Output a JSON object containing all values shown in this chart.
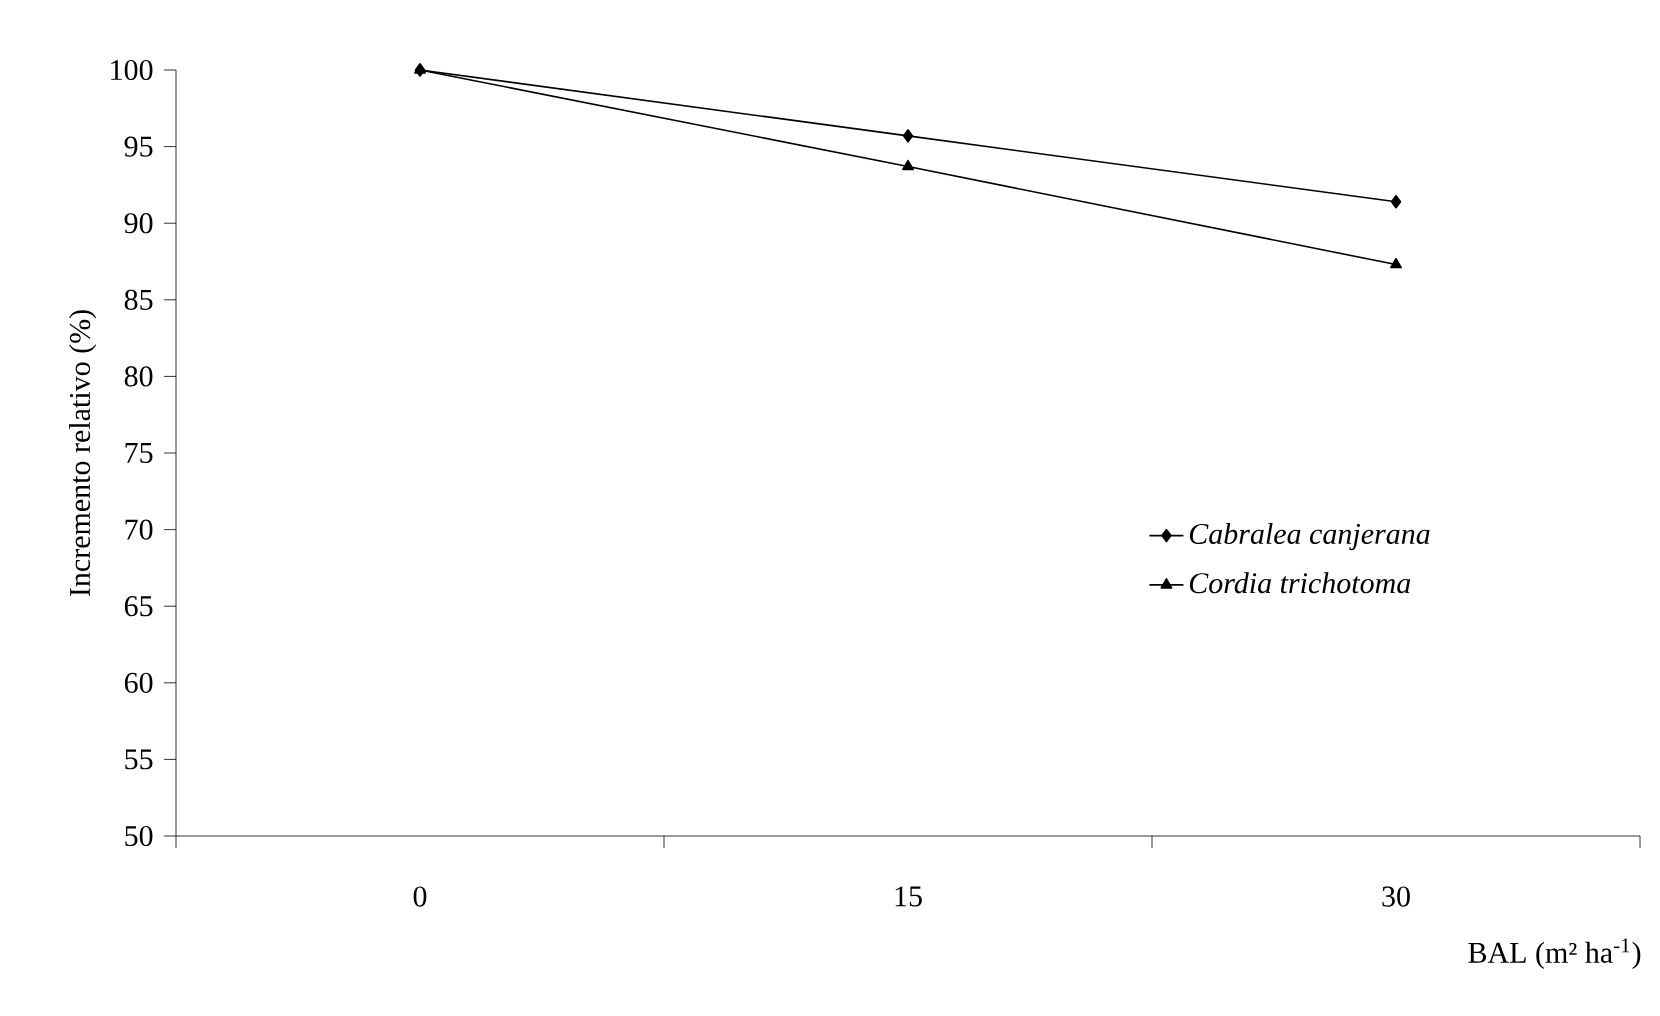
{
  "chart_data": {
    "type": "line",
    "xlabel": "BAL (m² ha$^{-1}$)",
    "ylabel": "Incremento relativo (%)",
    "categories": [
      "0",
      "15",
      "30"
    ],
    "series": [
      {
        "name": "Cabralea canjerana",
        "color": "#000000",
        "marker": "diamond",
        "values": [
          100,
          95.7,
          91.4
        ]
      },
      {
        "name": "Cordia trichotoma",
        "color": "#000000",
        "marker": "triangle",
        "values": [
          100,
          93.7,
          87.3
        ]
      }
    ],
    "ylim": [
      50,
      100
    ],
    "yticks": [
      50,
      55,
      60,
      65,
      70,
      75,
      80,
      85,
      90,
      95,
      100
    ],
    "legend": "right",
    "grid": false,
    "line_style": "solid"
  }
}
